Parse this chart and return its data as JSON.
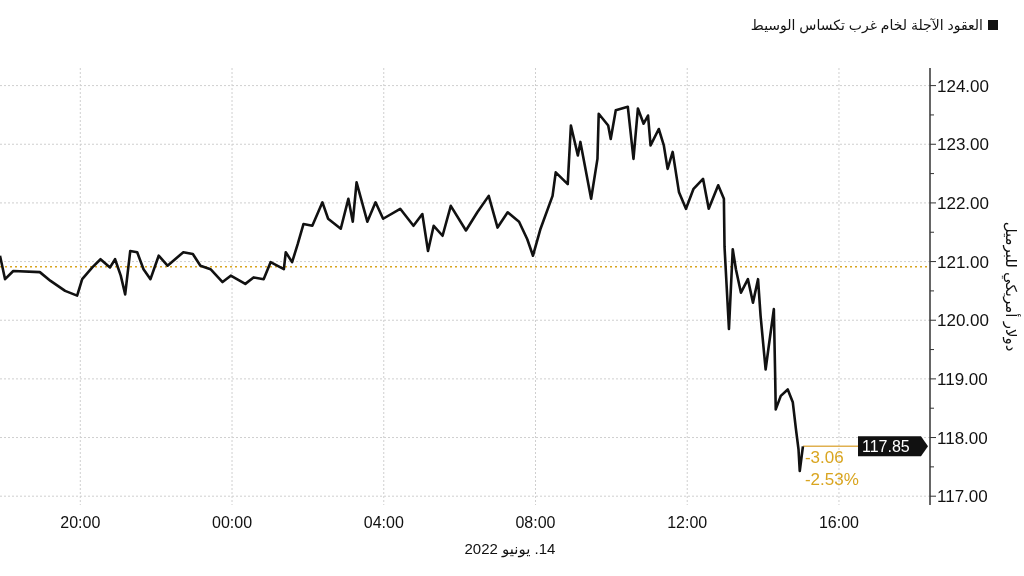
{
  "chart_data": {
    "type": "line",
    "xlabel": "14. يونيو 2022",
    "ylabel": "دولار أمريكي للبرميل",
    "xlim": [
      "2022-06-13T17:53",
      "2022-06-14T18:24"
    ],
    "xticks": [
      {
        "value": "2022-06-13T20:00",
        "label": "20:00"
      },
      {
        "value": "2022-06-14T00:00",
        "label": "00:00"
      },
      {
        "value": "2022-06-14T04:00",
        "label": "04:00"
      },
      {
        "value": "2022-06-14T08:00",
        "label": "08:00"
      },
      {
        "value": "2022-06-14T12:00",
        "label": "12:00"
      },
      {
        "value": "2022-06-14T16:00",
        "label": "16:00"
      }
    ],
    "ylim": [
      116.85,
      124.3
    ],
    "yticks": [
      {
        "value": 117,
        "label": "117.00"
      },
      {
        "value": 117.5,
        "label": null
      },
      {
        "value": 118,
        "label": "118.00"
      },
      {
        "value": 118.5,
        "label": null
      },
      {
        "value": 119,
        "label": "119.00"
      },
      {
        "value": 119.5,
        "label": null
      },
      {
        "value": 120,
        "label": "120.00"
      },
      {
        "value": 120.5,
        "label": null
      },
      {
        "value": 121,
        "label": "121.00"
      },
      {
        "value": 121.5,
        "label": null
      },
      {
        "value": 122,
        "label": "122.00"
      },
      {
        "value": 122.5,
        "label": null
      },
      {
        "value": 123,
        "label": "123.00"
      },
      {
        "value": 123.5,
        "label": null
      },
      {
        "value": 124,
        "label": "124.00"
      }
    ],
    "grid": true,
    "legend": "top right",
    "marker": "none",
    "line_style": "solid",
    "series": [
      {
        "name": "العقود الآجلة لخام غرب تكساس الوسيط",
        "color": "#111111",
        "x": [
          "2022-06-13T17:53",
          "2022-06-13T18:01",
          "2022-06-13T18:14",
          "2022-06-13T18:56",
          "2022-06-13T19:13",
          "2022-06-13T19:36",
          "2022-06-13T19:55",
          "2022-06-13T20:03",
          "2022-06-13T20:19",
          "2022-06-13T20:32",
          "2022-06-13T20:47",
          "2022-06-13T20:55",
          "2022-06-13T21:04",
          "2022-06-13T21:11",
          "2022-06-13T21:19",
          "2022-06-13T21:30",
          "2022-06-13T21:40",
          "2022-06-13T21:51",
          "2022-06-13T22:04",
          "2022-06-13T22:18",
          "2022-06-13T22:43",
          "2022-06-13T22:58",
          "2022-06-13T23:10",
          "2022-06-13T23:26",
          "2022-06-13T23:45",
          "2022-06-13T23:58",
          "2022-06-14T00:21",
          "2022-06-14T00:34",
          "2022-06-14T00:50",
          "2022-06-14T01:01",
          "2022-06-14T01:22",
          "2022-06-14T01:25",
          "2022-06-14T01:35",
          "2022-06-14T01:44",
          "2022-06-14T01:53",
          "2022-06-14T02:07",
          "2022-06-14T02:23",
          "2022-06-14T02:32",
          "2022-06-14T02:52",
          "2022-06-14T03:04",
          "2022-06-14T03:11",
          "2022-06-14T03:17",
          "2022-06-14T03:34",
          "2022-06-14T03:47",
          "2022-06-14T03:59",
          "2022-06-14T04:26",
          "2022-06-14T04:47",
          "2022-06-14T05:01",
          "2022-06-14T05:10",
          "2022-06-14T05:19",
          "2022-06-14T05:33",
          "2022-06-14T05:46",
          "2022-06-14T06:10",
          "2022-06-14T06:28",
          "2022-06-14T06:46",
          "2022-06-14T07:00",
          "2022-06-14T07:16",
          "2022-06-14T07:34",
          "2022-06-14T07:47",
          "2022-06-14T07:56",
          "2022-06-14T08:08",
          "2022-06-14T08:27",
          "2022-06-14T08:32",
          "2022-06-14T08:51",
          "2022-06-14T08:56",
          "2022-06-14T09:07",
          "2022-06-14T09:11",
          "2022-06-14T09:28",
          "2022-06-14T09:38",
          "2022-06-14T09:40",
          "2022-06-14T09:55",
          "2022-06-14T09:59",
          "2022-06-14T10:07",
          "2022-06-14T10:26",
          "2022-06-14T10:35",
          "2022-06-14T10:42",
          "2022-06-14T10:51",
          "2022-06-14T10:58",
          "2022-06-14T11:02",
          "2022-06-14T11:15",
          "2022-06-14T11:23",
          "2022-06-14T11:29",
          "2022-06-14T11:37",
          "2022-06-14T11:47",
          "2022-06-14T11:58",
          "2022-06-14T12:10",
          "2022-06-14T12:25",
          "2022-06-14T12:34",
          "2022-06-14T12:49",
          "2022-06-14T12:58",
          "2022-06-14T12:59",
          "2022-06-14T13:06",
          "2022-06-14T13:12",
          "2022-06-14T13:17",
          "2022-06-14T13:25",
          "2022-06-14T13:36",
          "2022-06-14T13:44",
          "2022-06-14T13:52",
          "2022-06-14T13:56",
          "2022-06-14T14:04",
          "2022-06-14T14:09",
          "2022-06-14T14:17",
          "2022-06-14T14:19",
          "2022-06-14T14:20",
          "2022-06-14T14:28",
          "2022-06-14T14:39",
          "2022-06-14T14:47",
          "2022-06-14T14:52",
          "2022-06-14T14:56",
          "2022-06-14T14:58",
          "2022-06-14T15:03"
        ],
        "values": [
          121.1,
          120.7,
          120.84,
          120.82,
          120.67,
          120.5,
          120.42,
          120.7,
          120.9,
          121.04,
          120.9,
          121.04,
          120.76,
          120.44,
          121.18,
          121.16,
          120.87,
          120.7,
          121.1,
          120.93,
          121.16,
          121.13,
          120.93,
          120.87,
          120.65,
          120.76,
          120.62,
          120.73,
          120.7,
          120.99,
          120.87,
          121.16,
          120.99,
          121.3,
          121.64,
          121.61,
          122.01,
          121.73,
          121.56,
          122.07,
          121.68,
          122.35,
          121.68,
          122.01,
          121.73,
          121.9,
          121.61,
          121.81,
          121.18,
          121.61,
          121.44,
          121.95,
          121.53,
          121.84,
          122.12,
          121.58,
          121.84,
          121.68,
          121.38,
          121.1,
          121.56,
          122.12,
          122.52,
          122.32,
          123.32,
          122.81,
          123.04,
          122.07,
          122.75,
          123.52,
          123.32,
          123.09,
          123.58,
          123.64,
          122.75,
          123.61,
          123.35,
          123.49,
          122.98,
          123.26,
          122.98,
          122.58,
          122.87,
          122.18,
          121.9,
          122.24,
          122.41,
          121.9,
          122.3,
          122.07,
          121.25,
          119.85,
          121.21,
          120.87,
          120.47,
          120.7,
          120.3,
          120.7,
          120.08,
          119.16,
          119.56,
          120.19,
          119.11,
          118.48,
          118.71,
          118.82,
          118.6,
          118.14,
          117.8,
          117.43,
          117.85
        ]
      }
    ],
    "ref_lines": [
      {
        "axis": "y",
        "value": 120.91,
        "color": "#d9a520",
        "line_style": "dotted"
      },
      {
        "axis": "y",
        "value": 117.85,
        "label": "117.85",
        "color": "#e0b050",
        "line_style": "solid"
      }
    ],
    "annotations": [
      "-3.06",
      "-2.53%"
    ]
  }
}
